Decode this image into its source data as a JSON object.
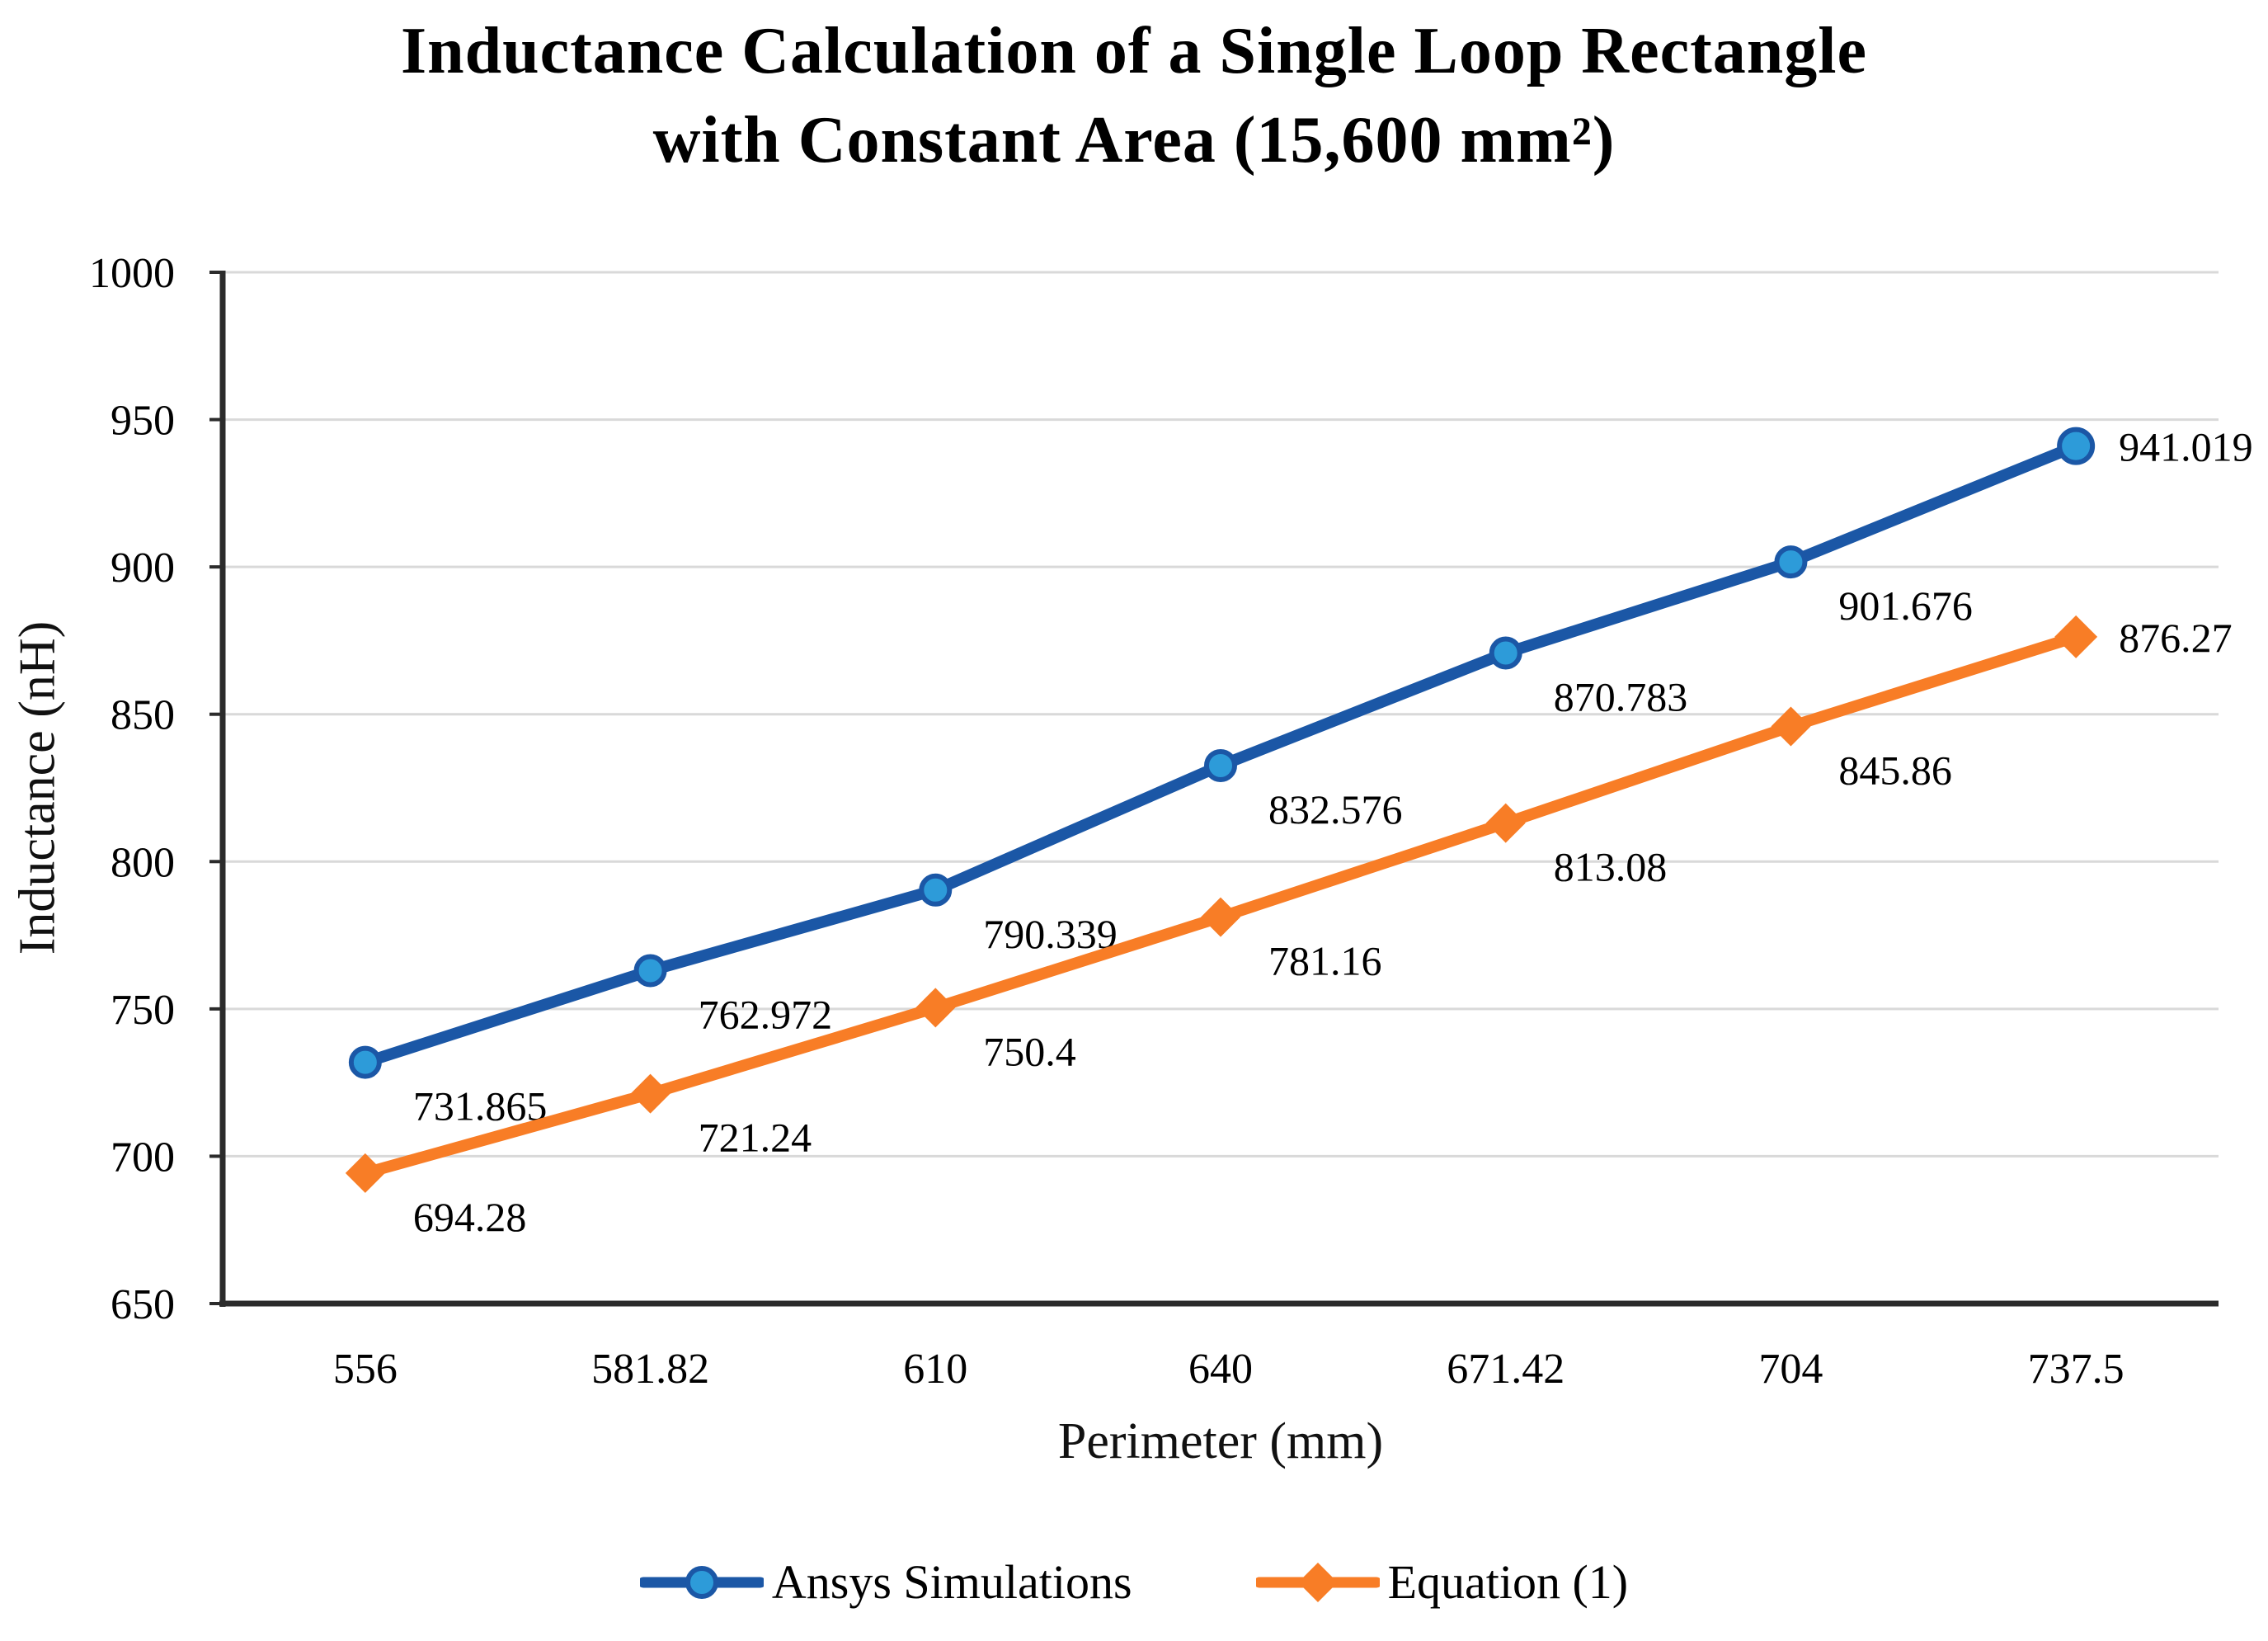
{
  "figure": {
    "background": "#ffffff"
  },
  "chart_data": {
    "type": "line",
    "title": "Inductance Calculation of a Single Loop Rectangle with Constant Area (15,600 mm²)",
    "title_lines": [
      "Inductance Calculation of a Single Loop Rectangle",
      "with Constant Area (15,600 mm²)"
    ],
    "xlabel": "Perimeter (mm)",
    "ylabel": "Inductance (nH)",
    "x_axis_type": "category",
    "categories": [
      "556",
      "581.82",
      "610",
      "640",
      "671.42",
      "704",
      "737.5"
    ],
    "ylim": [
      650,
      1000
    ],
    "y_ticks": [
      650,
      700,
      750,
      800,
      850,
      900,
      950,
      1000
    ],
    "grid": "horizontal",
    "legend_position": "bottom",
    "series": [
      {
        "name": "Ansys Simulations",
        "marker": "circle",
        "line_color": "#1B57A6",
        "marker_fill": "#2D9BD9",
        "values": [
          731.865,
          762.972,
          790.339,
          832.576,
          870.783,
          901.676,
          941.019
        ],
        "data_labels": [
          "731.865",
          "762.972",
          "790.339",
          "832.576",
          "870.783",
          "901.676",
          "941.019"
        ]
      },
      {
        "name": "Equation (1)",
        "marker": "diamond",
        "line_color": "#F87D26",
        "marker_fill": "#F87D26",
        "values": [
          694.28,
          721.24,
          750.4,
          781.16,
          813.08,
          845.86,
          876.27
        ],
        "data_labels": [
          "694.28",
          "721.24",
          "750.4",
          "781.16",
          "813.08",
          "845.86",
          "876.27"
        ]
      }
    ],
    "style": {
      "grid_color": "#D9D9D9",
      "axis_color": "#2B2B2B",
      "text_color": "#000000",
      "tick_font_px": 52,
      "data_label_font_px": 50
    }
  }
}
